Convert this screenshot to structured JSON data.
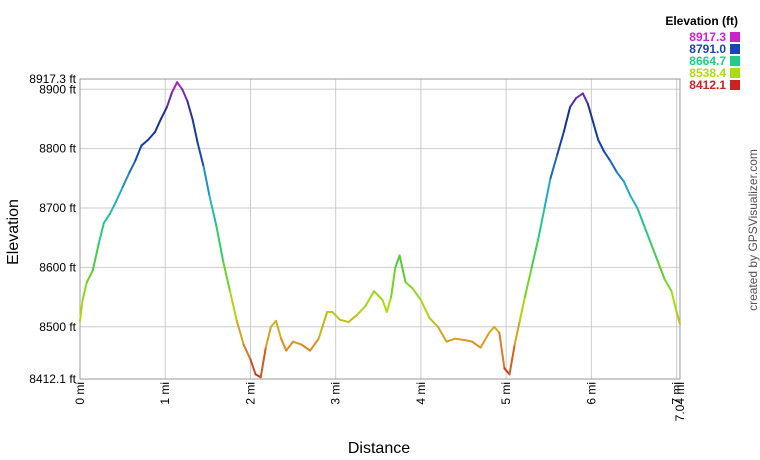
{
  "chart_data": {
    "type": "line",
    "xlabel": "Distance",
    "ylabel": "Elevation",
    "credit": "created by GPSVisualizer.com",
    "xlim": [
      0,
      7.04
    ],
    "ylim": [
      8412.1,
      8917.3
    ],
    "x_ticks": [
      {
        "value": 0,
        "label": "0 mi"
      },
      {
        "value": 1,
        "label": "1 mi"
      },
      {
        "value": 2,
        "label": "2 mi"
      },
      {
        "value": 3,
        "label": "3 mi"
      },
      {
        "value": 4,
        "label": "4 mi"
      },
      {
        "value": 5,
        "label": "5 mi"
      },
      {
        "value": 6,
        "label": "6 mi"
      },
      {
        "value": 7,
        "label": "7 mi"
      },
      {
        "value": 7.04,
        "label": "7.04 mi"
      }
    ],
    "y_ticks": [
      {
        "value": 8412.1,
        "label": "8412.1 ft"
      },
      {
        "value": 8500,
        "label": "8500 ft"
      },
      {
        "value": 8600,
        "label": "8600 ft"
      },
      {
        "value": 8700,
        "label": "8700 ft"
      },
      {
        "value": 8800,
        "label": "8800 ft"
      },
      {
        "value": 8900,
        "label": "8900 ft"
      },
      {
        "value": 8917.3,
        "label": "8917.3 ft"
      }
    ],
    "legend": {
      "title": "Elevation (ft)",
      "placement": "top-right",
      "entries": [
        {
          "label": "8917.3",
          "color": "#cc22cc"
        },
        {
          "label": "8791.0",
          "color": "#1a44bb"
        },
        {
          "label": "8664.7",
          "color": "#22cc88"
        },
        {
          "label": "8538.4",
          "color": "#aadd11"
        },
        {
          "label": "8412.1",
          "color": "#cc2222"
        }
      ]
    },
    "color_scale": [
      {
        "value": 8412.1,
        "color": "#cc2222"
      },
      {
        "value": 8475.0,
        "color": "#dd9922"
      },
      {
        "value": 8538.4,
        "color": "#aadd11"
      },
      {
        "value": 8600.0,
        "color": "#55cc33"
      },
      {
        "value": 8664.7,
        "color": "#22cc88"
      },
      {
        "value": 8730.0,
        "color": "#22aacc"
      },
      {
        "value": 8791.0,
        "color": "#1a44bb"
      },
      {
        "value": 8855.0,
        "color": "#113388"
      },
      {
        "value": 8917.3,
        "color": "#cc22cc"
      }
    ],
    "series": [
      {
        "x": [
          0,
          0.03,
          0.08,
          0.15,
          0.22,
          0.28,
          0.35,
          0.42,
          0.5,
          0.58,
          0.65,
          0.72,
          0.8,
          0.88,
          0.95,
          1.02,
          1.08,
          1.14,
          1.2,
          1.26,
          1.32,
          1.38,
          1.45,
          1.52,
          1.6,
          1.68,
          1.76,
          1.84,
          1.92,
          2.0,
          2.06,
          2.12,
          2.18,
          2.24,
          2.3,
          2.36,
          2.42,
          2.5,
          2.6,
          2.7,
          2.8,
          2.9,
          2.96,
          3.05,
          3.15,
          3.25,
          3.35,
          3.45,
          3.55,
          3.6,
          3.65,
          3.7,
          3.75,
          3.82,
          3.9,
          4.0,
          4.1,
          4.2,
          4.3,
          4.4,
          4.5,
          4.6,
          4.7,
          4.8,
          4.86,
          4.92,
          4.98,
          5.04,
          5.1,
          5.16,
          5.22,
          5.3,
          5.38,
          5.45,
          5.52,
          5.6,
          5.68,
          5.75,
          5.82,
          5.9,
          5.96,
          6.02,
          6.08,
          6.15,
          6.22,
          6.3,
          6.38,
          6.46,
          6.54,
          6.62,
          6.7,
          6.78,
          6.86,
          6.94,
          7.0,
          7.04
        ],
        "y": [
          8510,
          8545,
          8575,
          8595,
          8640,
          8675,
          8690,
          8710,
          8735,
          8760,
          8780,
          8805,
          8815,
          8828,
          8850,
          8870,
          8895,
          8912,
          8900,
          8880,
          8850,
          8810,
          8770,
          8720,
          8670,
          8610,
          8560,
          8510,
          8470,
          8445,
          8420,
          8415,
          8465,
          8500,
          8510,
          8480,
          8460,
          8475,
          8470,
          8460,
          8480,
          8525,
          8525,
          8512,
          8508,
          8520,
          8535,
          8560,
          8545,
          8525,
          8550,
          8600,
          8620,
          8575,
          8565,
          8545,
          8515,
          8500,
          8475,
          8480,
          8478,
          8475,
          8465,
          8490,
          8500,
          8490,
          8430,
          8420,
          8470,
          8510,
          8550,
          8600,
          8650,
          8700,
          8750,
          8790,
          8830,
          8870,
          8885,
          8893,
          8875,
          8845,
          8815,
          8795,
          8780,
          8760,
          8745,
          8720,
          8700,
          8670,
          8640,
          8610,
          8580,
          8560,
          8525,
          8505
        ]
      }
    ]
  }
}
